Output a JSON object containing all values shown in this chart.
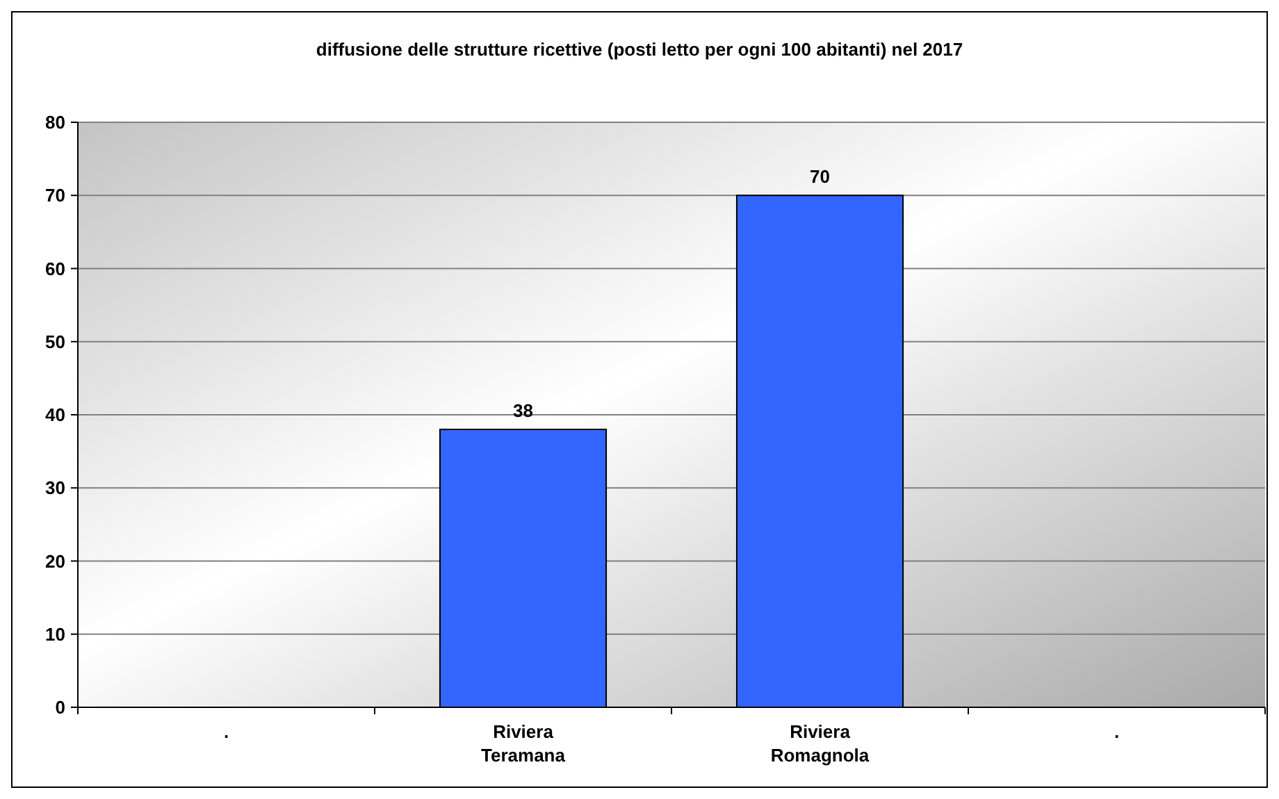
{
  "chart_data": {
    "type": "bar",
    "title": "diffusione delle strutture ricettive (posti letto per ogni 100 abitanti) nel 2017",
    "categories": [
      ".",
      "Riviera Teramana",
      "Riviera Romagnola",
      "."
    ],
    "values": [
      null,
      38,
      70,
      null
    ],
    "color": "#3366ff",
    "ylim": [
      0,
      80
    ],
    "yticks": [
      0,
      10,
      20,
      30,
      40,
      50,
      60,
      70,
      80
    ],
    "grid": "y",
    "data_labels": true
  }
}
